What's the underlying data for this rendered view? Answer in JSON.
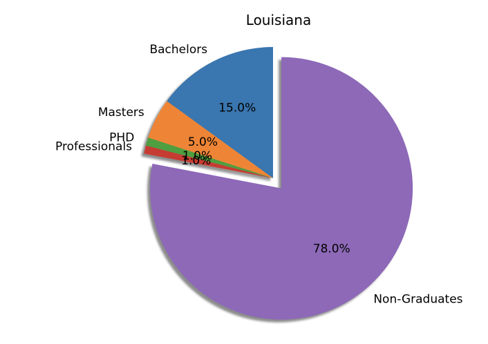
{
  "chart_data": {
    "type": "pie",
    "title": "Louisiana",
    "start_angle_deg": 90,
    "direction": "counterclockwise",
    "shadow": true,
    "slices": [
      {
        "label": "Bachelors",
        "value": 15.0,
        "pct_label": "15.0%",
        "color": "#3a76af",
        "explode": 0
      },
      {
        "label": "Masters",
        "value": 5.0,
        "pct_label": "5.0%",
        "color": "#ee8536",
        "explode": 0
      },
      {
        "label": "PHD",
        "value": 1.0,
        "pct_label": "1.0%",
        "color": "#4f9e3f",
        "explode": 0
      },
      {
        "label": "Professionals",
        "value": 1.0,
        "pct_label": "1.0%",
        "color": "#c63c32",
        "explode": 0
      },
      {
        "label": "Non-Graduates",
        "value": 78.0,
        "pct_label": "78.0%",
        "color": "#8d69b8",
        "explode": 0.1
      }
    ]
  }
}
